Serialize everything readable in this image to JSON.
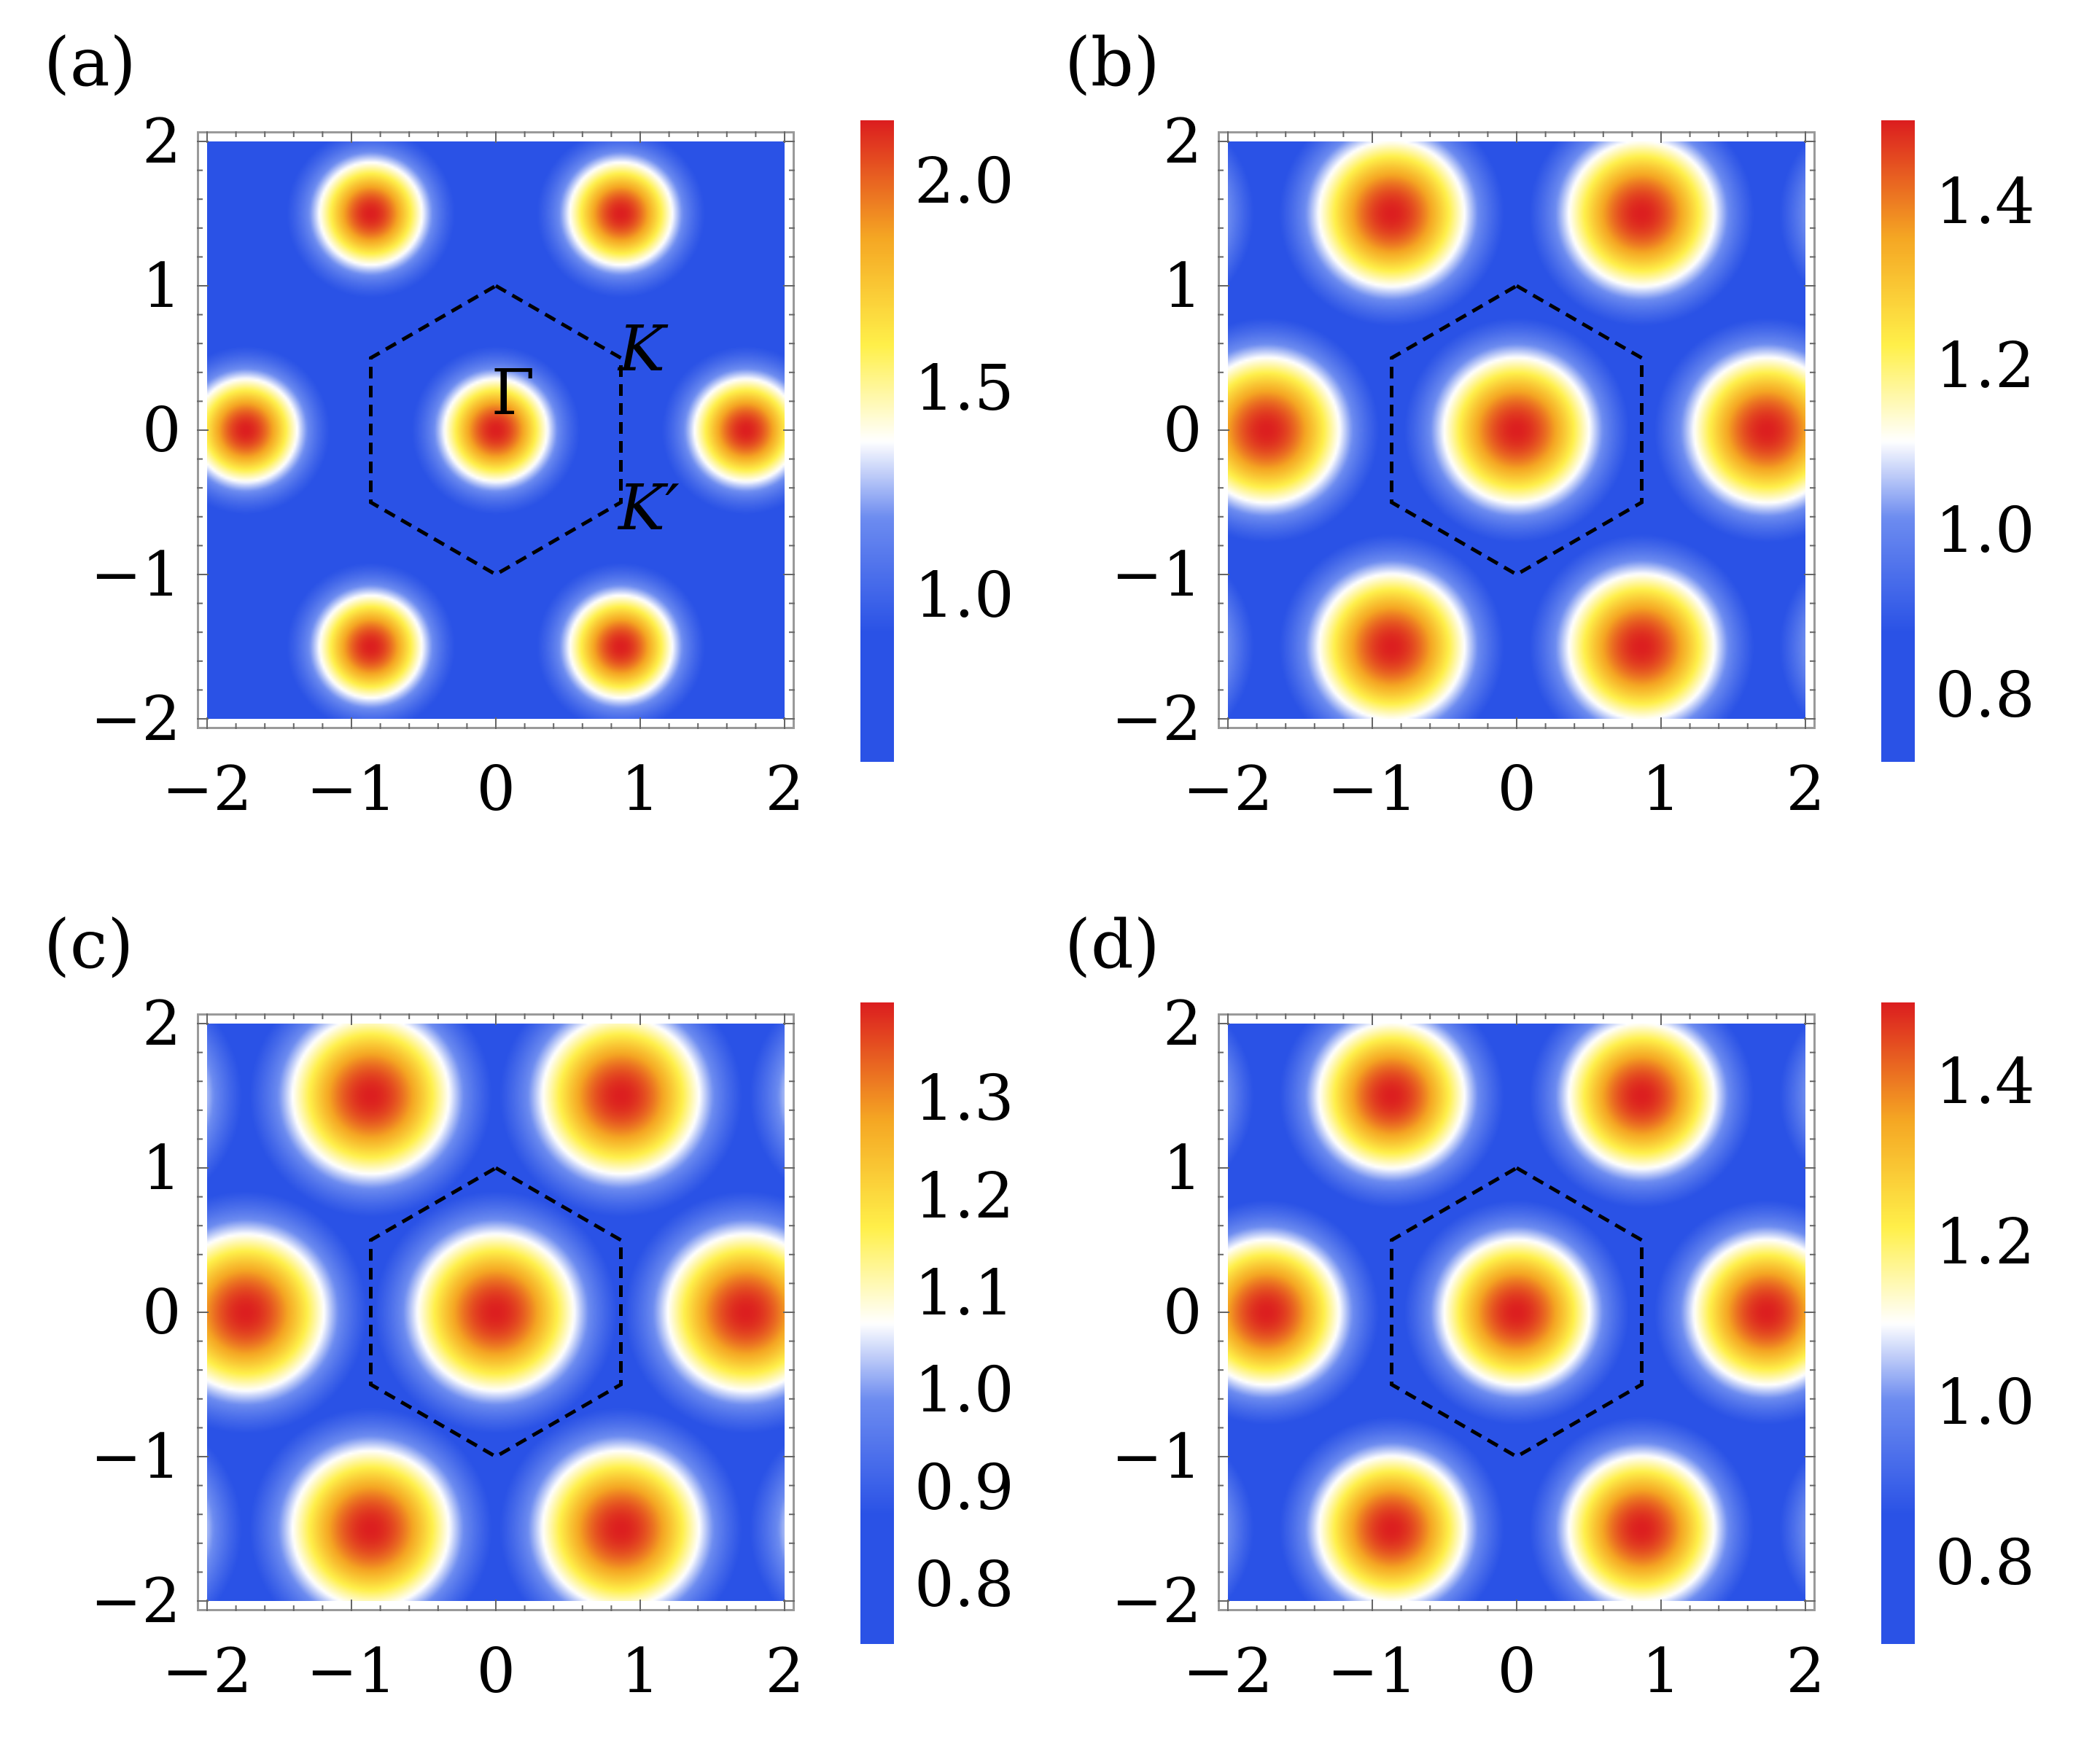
{
  "chart_data": [
    {
      "type": "heatmap",
      "panel_label": "(a)",
      "xlim": [
        -2,
        2
      ],
      "ylim": [
        -2,
        2
      ],
      "x_ticks": [
        "−2",
        "−1",
        "0",
        "1",
        "2"
      ],
      "y_ticks": [
        "−2",
        "−1",
        "0",
        "1",
        "2"
      ],
      "colorbar": {
        "min": 0.6,
        "max": 2.15,
        "ticks": [
          "1.0",
          "1.5",
          "2.0"
        ],
        "tick_values": [
          1.0,
          1.5,
          2.0
        ]
      },
      "peak_value": 2.15,
      "background_value": 0.75,
      "peak_width": 0.28,
      "hexagon_vertices": [
        [
          0,
          1
        ],
        [
          0.866,
          0.5
        ],
        [
          0.866,
          -0.5
        ],
        [
          0,
          -1
        ],
        [
          -0.866,
          -0.5
        ],
        [
          -0.866,
          0.5
        ]
      ],
      "point_labels": [
        {
          "text": "Γ",
          "x": 0.12,
          "y": 0.25
        },
        {
          "text": "K",
          "x": 1.0,
          "y": 0.55
        },
        {
          "text": "K′",
          "x": 1.0,
          "y": -0.55
        }
      ]
    },
    {
      "type": "heatmap",
      "panel_label": "(b)",
      "xlim": [
        -2,
        2
      ],
      "ylim": [
        -2,
        2
      ],
      "x_ticks": [
        "−2",
        "−1",
        "0",
        "1",
        "2"
      ],
      "y_ticks": [
        "−2",
        "−1",
        "0",
        "1",
        "2"
      ],
      "colorbar": {
        "min": 0.72,
        "max": 1.5,
        "ticks": [
          "0.8",
          "1.0",
          "1.2",
          "1.4"
        ],
        "tick_values": [
          0.8,
          1.0,
          1.2,
          1.4
        ]
      },
      "peak_value": 1.5,
      "background_value": 0.74,
      "peak_width": 0.42,
      "hexagon_vertices": [
        [
          0,
          1
        ],
        [
          0.866,
          0.5
        ],
        [
          0.866,
          -0.5
        ],
        [
          0,
          -1
        ],
        [
          -0.866,
          -0.5
        ],
        [
          -0.866,
          0.5
        ]
      ]
    },
    {
      "type": "heatmap",
      "panel_label": "(c)",
      "xlim": [
        -2,
        2
      ],
      "ylim": [
        -2,
        2
      ],
      "x_ticks": [
        "−2",
        "−1",
        "0",
        "1",
        "2"
      ],
      "y_ticks": [
        "−2",
        "−1",
        "0",
        "1",
        "2"
      ],
      "colorbar": {
        "min": 0.74,
        "max": 1.4,
        "ticks": [
          "0.8",
          "0.9",
          "1.0",
          "1.1",
          "1.2",
          "1.3"
        ],
        "tick_values": [
          0.8,
          0.9,
          1.0,
          1.1,
          1.2,
          1.3
        ]
      },
      "peak_value": 1.4,
      "background_value": 0.76,
      "peak_width": 0.45,
      "hexagon_vertices": [
        [
          0,
          1
        ],
        [
          0.866,
          0.5
        ],
        [
          0.866,
          -0.5
        ],
        [
          0,
          -1
        ],
        [
          -0.866,
          -0.5
        ],
        [
          -0.866,
          0.5
        ]
      ]
    },
    {
      "type": "heatmap",
      "panel_label": "(d)",
      "xlim": [
        -2,
        2
      ],
      "ylim": [
        -2,
        2
      ],
      "x_ticks": [
        "−2",
        "−1",
        "0",
        "1",
        "2"
      ],
      "y_ticks": [
        "−2",
        "−1",
        "0",
        "1",
        "2"
      ],
      "colorbar": {
        "min": 0.7,
        "max": 1.5,
        "ticks": [
          "0.8",
          "1.0",
          "1.2",
          "1.4"
        ],
        "tick_values": [
          0.8,
          1.0,
          1.2,
          1.4
        ]
      },
      "peak_value": 1.5,
      "background_value": 0.72,
      "peak_width": 0.42,
      "hexagon_vertices": [
        [
          0,
          1
        ],
        [
          0.866,
          0.5
        ],
        [
          0.866,
          -0.5
        ],
        [
          0,
          -1
        ],
        [
          -0.866,
          -0.5
        ],
        [
          -0.866,
          0.5
        ]
      ]
    }
  ],
  "colors": {
    "low": "#2a52e6",
    "mid_low": "#6d8cf0",
    "mid": "#ffffff",
    "mid_high": "#fff04a",
    "high_mid": "#f5a623",
    "high": "#dc1f1f"
  }
}
